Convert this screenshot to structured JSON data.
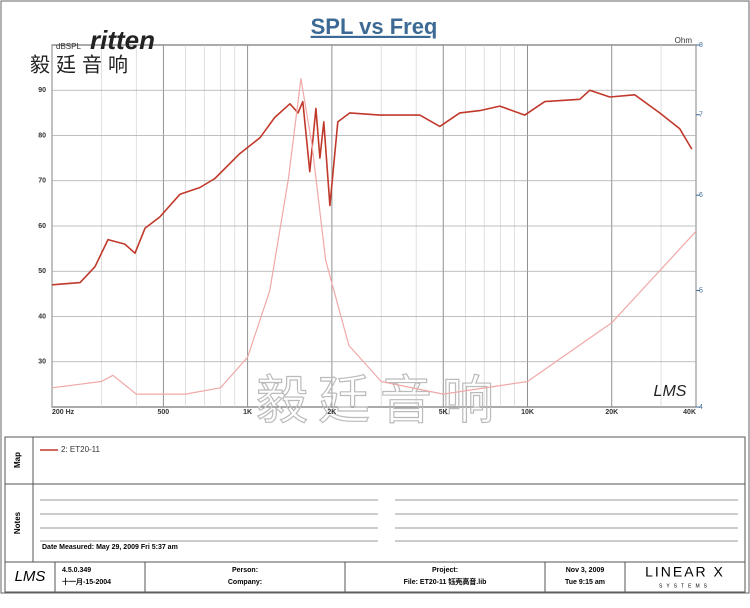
{
  "logo": {
    "brand": "ritten",
    "chinese": "毅廷音响"
  },
  "watermark": "毅廷音响",
  "chart_data": {
    "type": "line",
    "title": "SPL vs Freq",
    "y_label": "dBSPL",
    "y2_label": "Ohm",
    "xlog": true,
    "y2log": true,
    "grid": true,
    "xlim": [
      200,
      40000
    ],
    "ylim": [
      20,
      100
    ],
    "y2lim": [
      4,
      8
    ],
    "xticks": [
      {
        "value": 200,
        "label": "200 Hz"
      },
      500,
      {
        "value": 1000,
        "label": "1K"
      },
      {
        "value": 2000,
        "label": "2K"
      },
      {
        "value": 5000,
        "label": "5K"
      },
      {
        "value": 10000,
        "label": "10K"
      },
      {
        "value": 20000,
        "label": "20K"
      },
      {
        "value": 40000,
        "label": "40K"
      }
    ],
    "yticks": [
      30,
      40,
      50,
      60,
      70,
      80,
      90
    ],
    "y2ticks": [
      4,
      5,
      6,
      7,
      8
    ],
    "series": [
      {
        "name": "2: ET20-11",
        "color": "#c0392b",
        "x": [
          200,
          252,
          285,
          317,
          364,
          396,
          430,
          486,
          573,
          676,
          764,
          938,
          1106,
          1251,
          1416,
          1513,
          1575,
          1668,
          1753,
          1812,
          1872,
          1968,
          2100,
          2318,
          2967,
          4124,
          4862,
          5730,
          6760,
          7962,
          9777,
          11530,
          15380,
          16680,
          19680,
          24150,
          29670,
          34980,
          38650
        ],
        "values": [
          47,
          47.5,
          51,
          57,
          56,
          54,
          59.5,
          62,
          67,
          68.5,
          70.5,
          76,
          79.5,
          84,
          87,
          85,
          87.5,
          72,
          86,
          75,
          83,
          64.5,
          83,
          85,
          84.5,
          84.5,
          82,
          85,
          85.5,
          86.5,
          84.5,
          87.5,
          88,
          90,
          88.5,
          89,
          85,
          81.5,
          77
        ]
      },
      {
        "color": "#f0a8a8",
        "axis": "y2",
        "x": [
          200,
          300,
          330,
          400,
          600,
          800,
          1000,
          1200,
          1400,
          1550,
          1700,
          1900,
          2300,
          3000,
          5000,
          10000,
          20000,
          40000
        ],
        "values": [
          4.15,
          4.2,
          4.25,
          4.1,
          4.1,
          4.15,
          4.4,
          5.0,
          6.2,
          7.5,
          6.6,
          5.3,
          4.5,
          4.2,
          4.1,
          4.2,
          4.7,
          5.6
        ]
      }
    ]
  },
  "panels": {
    "map_label": "Map",
    "notes_label": "Notes",
    "date_measured": "Date Measured: May 29, 2009 Fri 5:37 am"
  },
  "footer": {
    "logo": "LMS",
    "version": "4.5.0.349",
    "build_date": "十一月-15-2004",
    "person": "Person:",
    "company": "Company:",
    "project": "Project:",
    "file": "File: ET20-11 钰壳高音.lib",
    "date": "Nov 3, 2009",
    "time": "Tue 9:15 am",
    "brand": "LINEAR X",
    "brand_sub": "SYSTEMS"
  },
  "plot_logo": "LMS"
}
